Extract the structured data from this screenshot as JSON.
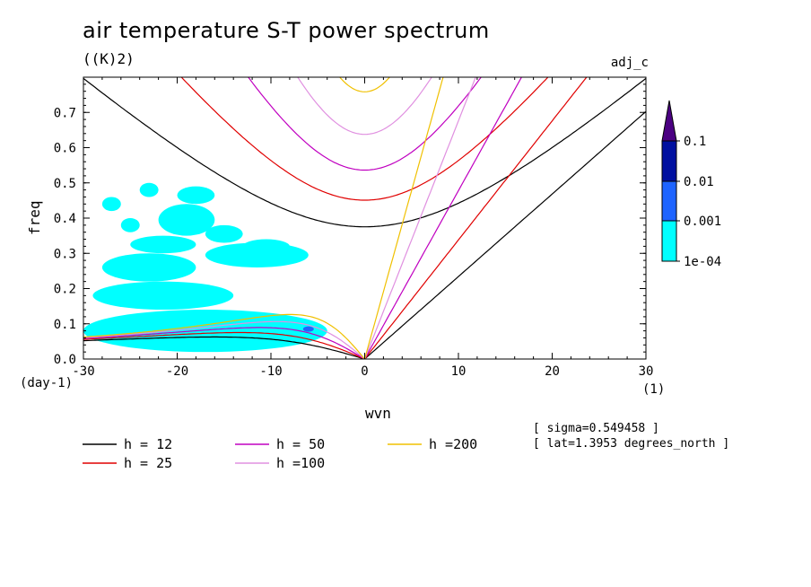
{
  "title": "air temperature S-T power spectrum",
  "units": "((K)2)",
  "dataset": "adj_c",
  "notes": [
    "[ sigma=0.549458 ]",
    "[ lat=1.3953 degrees_north ]"
  ],
  "chart_data": {
    "type": "line",
    "xlabel": "wvn",
    "ylabel": "freq",
    "x_unit_label": "(1)",
    "y_unit_label": "(day-1)",
    "xlim": [
      -30,
      30
    ],
    "ylim": [
      0,
      0.8
    ],
    "x_ticks": [
      -30,
      -20,
      -10,
      0,
      10,
      20,
      30
    ],
    "x_tick_labels": [
      "-30",
      "-20",
      "-10",
      "0",
      "10",
      "20",
      "30"
    ],
    "y_ticks": [
      0.0,
      0.1,
      0.2,
      0.3,
      0.4,
      0.5,
      0.6,
      0.7
    ],
    "y_tick_labels": [
      "0.0",
      "0.1",
      "0.2",
      "0.3",
      "0.4",
      "0.5",
      "0.6",
      "0.7"
    ],
    "series": [
      {
        "name": "h = 12",
        "color": "#000000",
        "h": 12
      },
      {
        "name": "h = 25",
        "color": "#e00000",
        "h": 25
      },
      {
        "name": "h = 50",
        "color": "#c000c0",
        "h": 50
      },
      {
        "name": "h =100",
        "color": "#e090e0",
        "h": 100
      },
      {
        "name": "h =200",
        "color": "#f0c000",
        "h": 200
      }
    ],
    "colorbar": {
      "labels": [
        "0.1",
        "0.01",
        "0.001",
        "1e-04"
      ],
      "colors": [
        "#4b0082",
        "#0010a0",
        "#1e64ff",
        "#00ffff"
      ]
    },
    "shading": "power values above 1e-04 (cyan) concentrated at negative wavenumbers, freq 0.02-0.5; small 0.001 patch near wvn -6, freq 0.08"
  }
}
